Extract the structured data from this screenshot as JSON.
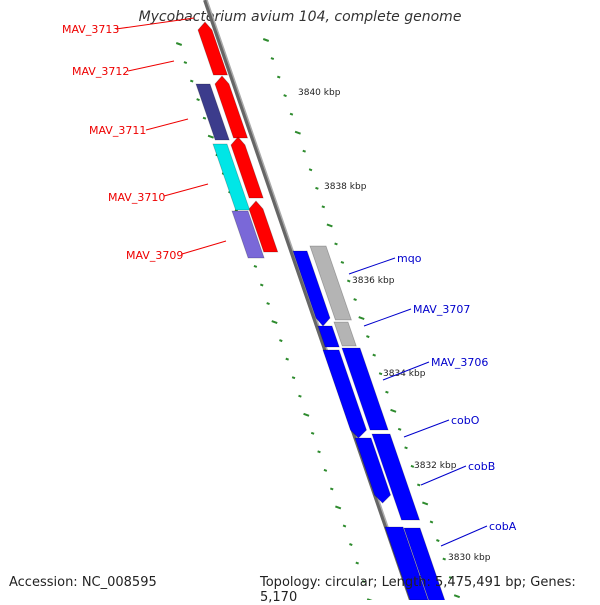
{
  "title": "Mycobacterium avium 104, complete genome",
  "footer": {
    "accession": "Accession: NC_008595",
    "summary": "Topology: circular; Length: 5,475,491 bp; Genes: 5,170"
  },
  "colors": {
    "backbone": "#8a8a8a",
    "tick": "#2e8b2e",
    "forward_label": "#ee0000",
    "reverse_label": "#0000cc"
  },
  "scale_labels": [
    "3840 kbp",
    "3838 kbp",
    "3836 kbp",
    "3834 kbp",
    "3832 kbp",
    "3830 kbp"
  ],
  "forward_genes": [
    {
      "label": "MAV_3713",
      "color": "#ff0000"
    },
    {
      "label": "MAV_3712",
      "color": "#ff0000"
    },
    {
      "label": "MAV_3711",
      "color": "#3c3c8c"
    },
    {
      "label": "MAV_3710",
      "color": "#00e6e6"
    },
    {
      "label": "MAV_3709",
      "color": "#7a68d8"
    }
  ],
  "reverse_genes": [
    {
      "label": "mqo",
      "color": "#b4b4b4"
    },
    {
      "label": "MAV_3707",
      "color": "#0000ff"
    },
    {
      "label": "MAV_3706",
      "color": "#0000ff"
    },
    {
      "label": "cobO",
      "color": "#0000ff"
    },
    {
      "label": "cobB",
      "color": "#0000ff"
    },
    {
      "label": "cobA",
      "color": "#0000ff"
    }
  ]
}
